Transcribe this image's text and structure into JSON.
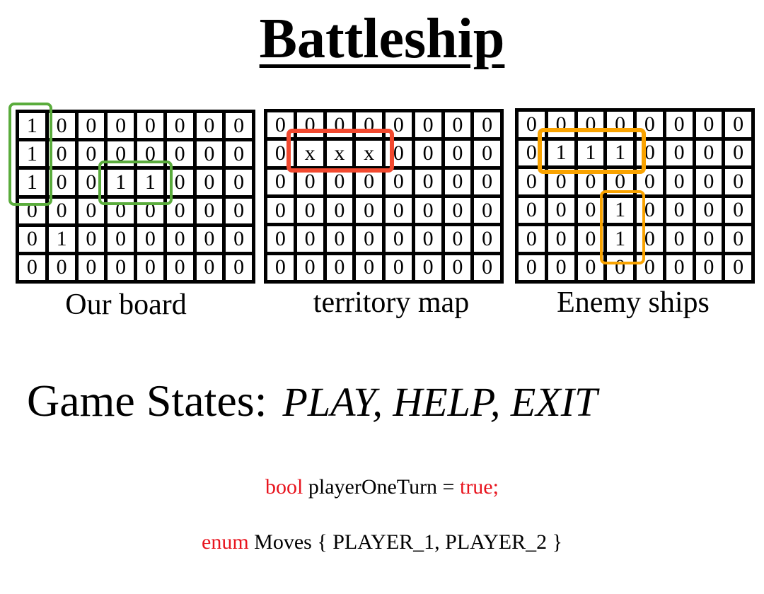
{
  "title": "Battleship",
  "boards": [
    {
      "label": "Our board",
      "cells": [
        [
          "1",
          "0",
          "0",
          "0",
          "0",
          "0",
          "0",
          "0"
        ],
        [
          "1",
          "0",
          "0",
          "0",
          "0",
          "0",
          "0",
          "0"
        ],
        [
          "1",
          "0",
          "0",
          "1",
          "1",
          "0",
          "0",
          "0"
        ],
        [
          "0",
          "0",
          "0",
          "0",
          "0",
          "0",
          "0",
          "0"
        ],
        [
          "0",
          "1",
          "0",
          "0",
          "0",
          "0",
          "0",
          "0"
        ],
        [
          "0",
          "0",
          "0",
          "0",
          "0",
          "0",
          "0",
          "0"
        ]
      ],
      "highlight_color": "#5aac3c"
    },
    {
      "label": "territory map",
      "cells": [
        [
          "0",
          "0",
          "0",
          "0",
          "0",
          "0",
          "0",
          "0"
        ],
        [
          "0",
          "x",
          "x",
          "x",
          "0",
          "0",
          "0",
          "0"
        ],
        [
          "0",
          "0",
          "0",
          "0",
          "0",
          "0",
          "0",
          "0"
        ],
        [
          "0",
          "0",
          "0",
          "0",
          "0",
          "0",
          "0",
          "0"
        ],
        [
          "0",
          "0",
          "0",
          "0",
          "0",
          "0",
          "0",
          "0"
        ],
        [
          "0",
          "0",
          "0",
          "0",
          "0",
          "0",
          "0",
          "0"
        ]
      ],
      "highlight_color": "#f2492f"
    },
    {
      "label": "Enemy ships",
      "cells": [
        [
          "0",
          "0",
          "0",
          "0",
          "0",
          "0",
          "0",
          "0"
        ],
        [
          "0",
          "1",
          "1",
          "1",
          "0",
          "0",
          "0",
          "0"
        ],
        [
          "0",
          "0",
          "0",
          "0",
          "0",
          "0",
          "0",
          "0"
        ],
        [
          "0",
          "0",
          "0",
          "1",
          "0",
          "0",
          "0",
          "0"
        ],
        [
          "0",
          "0",
          "0",
          "1",
          "0",
          "0",
          "0",
          "0"
        ],
        [
          "0",
          "0",
          "0",
          "0",
          "0",
          "0",
          "0",
          "0"
        ]
      ],
      "highlight_color": "#f9a300"
    }
  ],
  "game_states": {
    "label": "Game States:",
    "values": "PLAY, HELP, EXIT"
  },
  "code": {
    "line1": {
      "keyword": "bool",
      "middle": " playerOneTurn = ",
      "value": "true;"
    },
    "line2": {
      "keyword": "enum",
      "rest": " Moves { PLAYER_1, PLAYER_2 }"
    }
  },
  "keyword_color": "#e8141e"
}
